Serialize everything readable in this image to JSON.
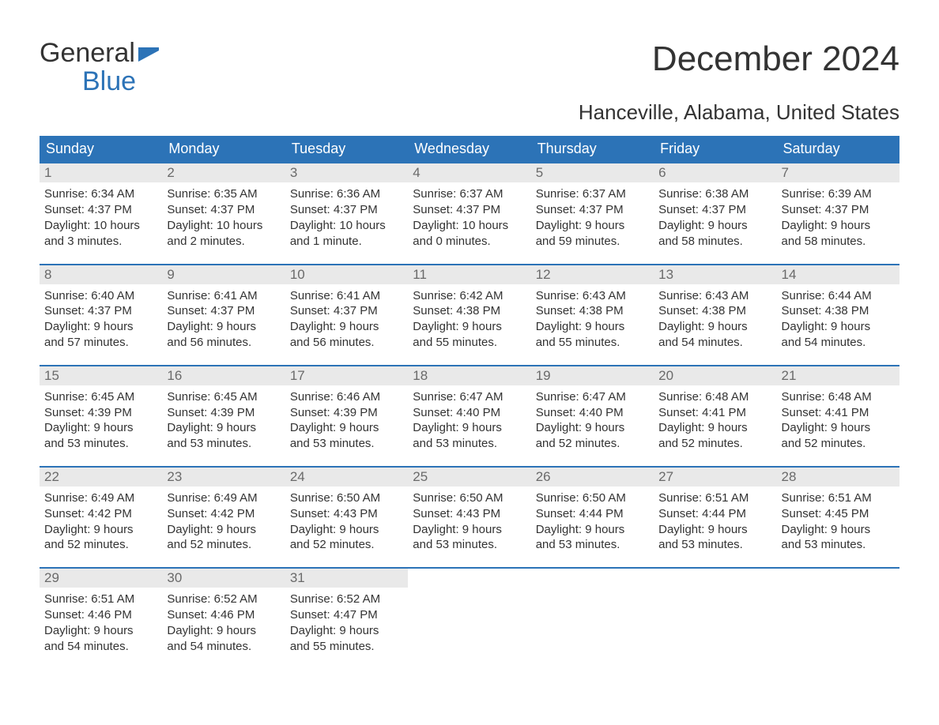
{
  "logo": {
    "line1": "General",
    "line2": "Blue",
    "flag_color": "#2c73b7"
  },
  "title": "December 2024",
  "subtitle": "Hanceville, Alabama, United States",
  "colors": {
    "header_bg": "#2c73b7",
    "header_text": "#ffffff",
    "daynum_bg": "#e9e9e9",
    "daynum_text": "#6a6a6a",
    "body_text": "#333333",
    "week_border": "#2c73b7",
    "page_bg": "#ffffff"
  },
  "fontsizes": {
    "title": 44,
    "subtitle": 26,
    "weekday": 18,
    "daynum": 17,
    "body": 15
  },
  "weekdays": [
    "Sunday",
    "Monday",
    "Tuesday",
    "Wednesday",
    "Thursday",
    "Friday",
    "Saturday"
  ],
  "weeks": [
    [
      {
        "n": "1",
        "sunrise": "Sunrise: 6:34 AM",
        "sunset": "Sunset: 4:37 PM",
        "dl1": "Daylight: 10 hours",
        "dl2": "and 3 minutes."
      },
      {
        "n": "2",
        "sunrise": "Sunrise: 6:35 AM",
        "sunset": "Sunset: 4:37 PM",
        "dl1": "Daylight: 10 hours",
        "dl2": "and 2 minutes."
      },
      {
        "n": "3",
        "sunrise": "Sunrise: 6:36 AM",
        "sunset": "Sunset: 4:37 PM",
        "dl1": "Daylight: 10 hours",
        "dl2": "and 1 minute."
      },
      {
        "n": "4",
        "sunrise": "Sunrise: 6:37 AM",
        "sunset": "Sunset: 4:37 PM",
        "dl1": "Daylight: 10 hours",
        "dl2": "and 0 minutes."
      },
      {
        "n": "5",
        "sunrise": "Sunrise: 6:37 AM",
        "sunset": "Sunset: 4:37 PM",
        "dl1": "Daylight: 9 hours",
        "dl2": "and 59 minutes."
      },
      {
        "n": "6",
        "sunrise": "Sunrise: 6:38 AM",
        "sunset": "Sunset: 4:37 PM",
        "dl1": "Daylight: 9 hours",
        "dl2": "and 58 minutes."
      },
      {
        "n": "7",
        "sunrise": "Sunrise: 6:39 AM",
        "sunset": "Sunset: 4:37 PM",
        "dl1": "Daylight: 9 hours",
        "dl2": "and 58 minutes."
      }
    ],
    [
      {
        "n": "8",
        "sunrise": "Sunrise: 6:40 AM",
        "sunset": "Sunset: 4:37 PM",
        "dl1": "Daylight: 9 hours",
        "dl2": "and 57 minutes."
      },
      {
        "n": "9",
        "sunrise": "Sunrise: 6:41 AM",
        "sunset": "Sunset: 4:37 PM",
        "dl1": "Daylight: 9 hours",
        "dl2": "and 56 minutes."
      },
      {
        "n": "10",
        "sunrise": "Sunrise: 6:41 AM",
        "sunset": "Sunset: 4:37 PM",
        "dl1": "Daylight: 9 hours",
        "dl2": "and 56 minutes."
      },
      {
        "n": "11",
        "sunrise": "Sunrise: 6:42 AM",
        "sunset": "Sunset: 4:38 PM",
        "dl1": "Daylight: 9 hours",
        "dl2": "and 55 minutes."
      },
      {
        "n": "12",
        "sunrise": "Sunrise: 6:43 AM",
        "sunset": "Sunset: 4:38 PM",
        "dl1": "Daylight: 9 hours",
        "dl2": "and 55 minutes."
      },
      {
        "n": "13",
        "sunrise": "Sunrise: 6:43 AM",
        "sunset": "Sunset: 4:38 PM",
        "dl1": "Daylight: 9 hours",
        "dl2": "and 54 minutes."
      },
      {
        "n": "14",
        "sunrise": "Sunrise: 6:44 AM",
        "sunset": "Sunset: 4:38 PM",
        "dl1": "Daylight: 9 hours",
        "dl2": "and 54 minutes."
      }
    ],
    [
      {
        "n": "15",
        "sunrise": "Sunrise: 6:45 AM",
        "sunset": "Sunset: 4:39 PM",
        "dl1": "Daylight: 9 hours",
        "dl2": "and 53 minutes."
      },
      {
        "n": "16",
        "sunrise": "Sunrise: 6:45 AM",
        "sunset": "Sunset: 4:39 PM",
        "dl1": "Daylight: 9 hours",
        "dl2": "and 53 minutes."
      },
      {
        "n": "17",
        "sunrise": "Sunrise: 6:46 AM",
        "sunset": "Sunset: 4:39 PM",
        "dl1": "Daylight: 9 hours",
        "dl2": "and 53 minutes."
      },
      {
        "n": "18",
        "sunrise": "Sunrise: 6:47 AM",
        "sunset": "Sunset: 4:40 PM",
        "dl1": "Daylight: 9 hours",
        "dl2": "and 53 minutes."
      },
      {
        "n": "19",
        "sunrise": "Sunrise: 6:47 AM",
        "sunset": "Sunset: 4:40 PM",
        "dl1": "Daylight: 9 hours",
        "dl2": "and 52 minutes."
      },
      {
        "n": "20",
        "sunrise": "Sunrise: 6:48 AM",
        "sunset": "Sunset: 4:41 PM",
        "dl1": "Daylight: 9 hours",
        "dl2": "and 52 minutes."
      },
      {
        "n": "21",
        "sunrise": "Sunrise: 6:48 AM",
        "sunset": "Sunset: 4:41 PM",
        "dl1": "Daylight: 9 hours",
        "dl2": "and 52 minutes."
      }
    ],
    [
      {
        "n": "22",
        "sunrise": "Sunrise: 6:49 AM",
        "sunset": "Sunset: 4:42 PM",
        "dl1": "Daylight: 9 hours",
        "dl2": "and 52 minutes."
      },
      {
        "n": "23",
        "sunrise": "Sunrise: 6:49 AM",
        "sunset": "Sunset: 4:42 PM",
        "dl1": "Daylight: 9 hours",
        "dl2": "and 52 minutes."
      },
      {
        "n": "24",
        "sunrise": "Sunrise: 6:50 AM",
        "sunset": "Sunset: 4:43 PM",
        "dl1": "Daylight: 9 hours",
        "dl2": "and 52 minutes."
      },
      {
        "n": "25",
        "sunrise": "Sunrise: 6:50 AM",
        "sunset": "Sunset: 4:43 PM",
        "dl1": "Daylight: 9 hours",
        "dl2": "and 53 minutes."
      },
      {
        "n": "26",
        "sunrise": "Sunrise: 6:50 AM",
        "sunset": "Sunset: 4:44 PM",
        "dl1": "Daylight: 9 hours",
        "dl2": "and 53 minutes."
      },
      {
        "n": "27",
        "sunrise": "Sunrise: 6:51 AM",
        "sunset": "Sunset: 4:44 PM",
        "dl1": "Daylight: 9 hours",
        "dl2": "and 53 minutes."
      },
      {
        "n": "28",
        "sunrise": "Sunrise: 6:51 AM",
        "sunset": "Sunset: 4:45 PM",
        "dl1": "Daylight: 9 hours",
        "dl2": "and 53 minutes."
      }
    ],
    [
      {
        "n": "29",
        "sunrise": "Sunrise: 6:51 AM",
        "sunset": "Sunset: 4:46 PM",
        "dl1": "Daylight: 9 hours",
        "dl2": "and 54 minutes."
      },
      {
        "n": "30",
        "sunrise": "Sunrise: 6:52 AM",
        "sunset": "Sunset: 4:46 PM",
        "dl1": "Daylight: 9 hours",
        "dl2": "and 54 minutes."
      },
      {
        "n": "31",
        "sunrise": "Sunrise: 6:52 AM",
        "sunset": "Sunset: 4:47 PM",
        "dl1": "Daylight: 9 hours",
        "dl2": "and 55 minutes."
      },
      null,
      null,
      null,
      null
    ]
  ]
}
